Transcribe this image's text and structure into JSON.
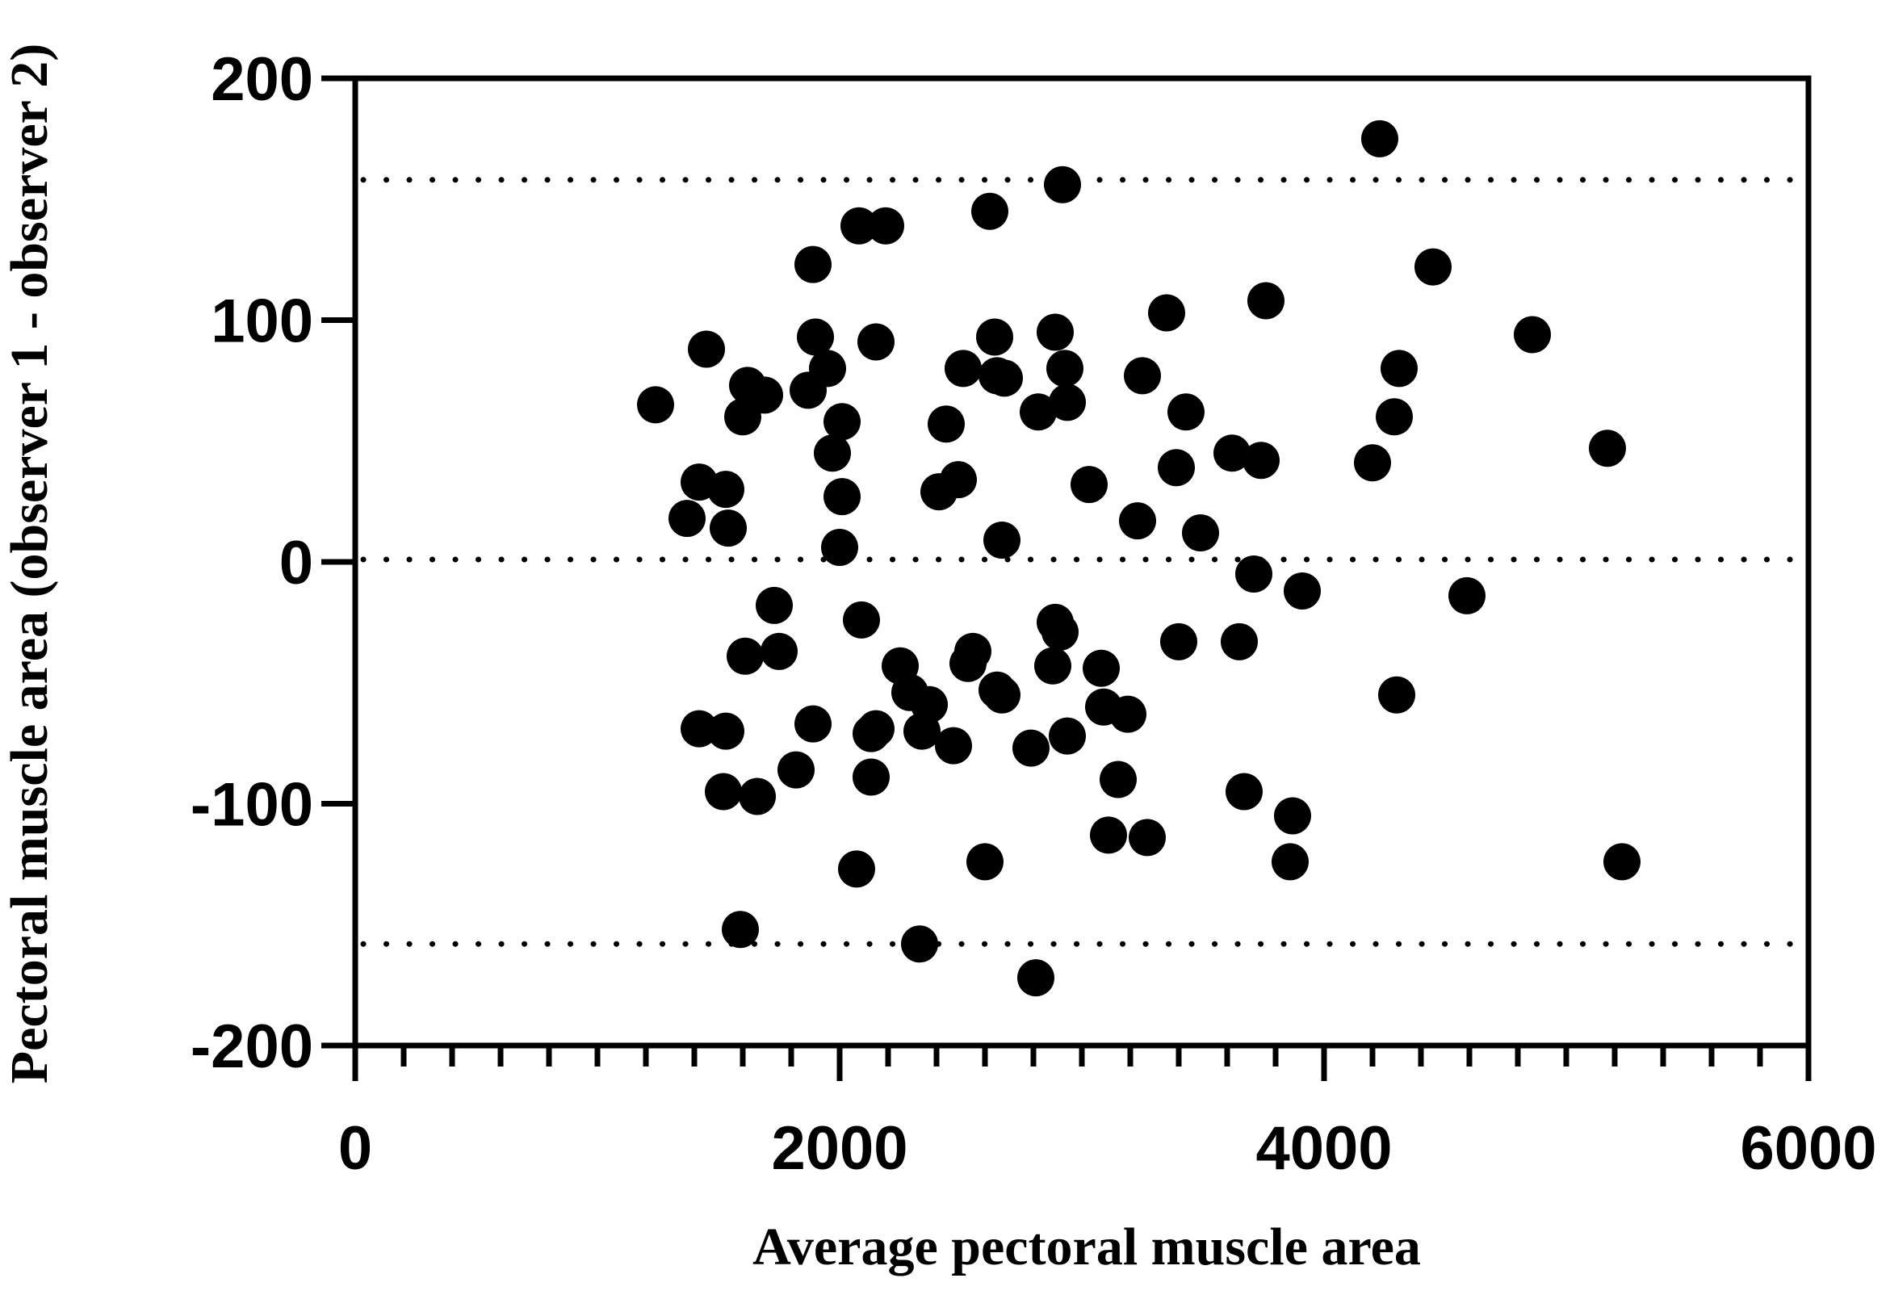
{
  "chart_data": {
    "type": "scatter",
    "title": "",
    "xlabel": "Average pectoral muscle  area",
    "ylabel": "Pectoral muscle area (observer 1 - observer 2)",
    "xlim": [
      0,
      6000
    ],
    "ylim": [
      -200,
      200
    ],
    "x_ticks": [
      0,
      2000,
      4000,
      6000
    ],
    "y_ticks": [
      -200,
      -100,
      0,
      100,
      200
    ],
    "x_tick_labels": [
      "0",
      "2000",
      "4000",
      "6000"
    ],
    "y_tick_labels": [
      "-200",
      "-100",
      "0",
      "100",
      "200"
    ],
    "x_minor_step": 200,
    "reference_lines": [
      158,
      1,
      -158
    ],
    "grid": false,
    "legend": "none",
    "marker_color": "#000000",
    "series": [
      {
        "points": [
          [
            1240,
            65
          ],
          [
            1370,
            18
          ],
          [
            1420,
            33
          ],
          [
            1450,
            88
          ],
          [
            1530,
            30
          ],
          [
            1540,
            14
          ],
          [
            1600,
            60
          ],
          [
            1620,
            73
          ],
          [
            1690,
            69
          ],
          [
            1730,
            -18
          ],
          [
            1750,
            -37
          ],
          [
            1610,
            -39
          ],
          [
            1420,
            -69
          ],
          [
            1530,
            -70
          ],
          [
            1520,
            -95
          ],
          [
            1660,
            -97
          ],
          [
            1820,
            -86
          ],
          [
            1890,
            -67
          ],
          [
            1590,
            -152
          ],
          [
            1870,
            71
          ],
          [
            1890,
            123
          ],
          [
            1900,
            93
          ],
          [
            1950,
            80
          ],
          [
            1970,
            45
          ],
          [
            2010,
            58
          ],
          [
            2010,
            27
          ],
          [
            2000,
            6
          ],
          [
            2090,
            -24
          ],
          [
            2080,
            139
          ],
          [
            2190,
            139
          ],
          [
            2150,
            91
          ],
          [
            2130,
            -71
          ],
          [
            2150,
            -69
          ],
          [
            2130,
            -89
          ],
          [
            2070,
            -127
          ],
          [
            2250,
            -43
          ],
          [
            2290,
            -54
          ],
          [
            2370,
            -59
          ],
          [
            2340,
            -70
          ],
          [
            2330,
            -158
          ],
          [
            2410,
            29
          ],
          [
            2440,
            57
          ],
          [
            2490,
            34
          ],
          [
            2510,
            80
          ],
          [
            2530,
            -42
          ],
          [
            2550,
            -37
          ],
          [
            2470,
            -76
          ],
          [
            2620,
            145
          ],
          [
            2640,
            93
          ],
          [
            2650,
            -53
          ],
          [
            2670,
            -55
          ],
          [
            2650,
            77
          ],
          [
            2680,
            76
          ],
          [
            2670,
            9
          ],
          [
            2790,
            -77
          ],
          [
            2600,
            -124
          ],
          [
            2810,
            -172
          ],
          [
            2820,
            62
          ],
          [
            2890,
            95
          ],
          [
            2890,
            -25
          ],
          [
            2910,
            -29
          ],
          [
            2880,
            -43
          ],
          [
            2920,
            156
          ],
          [
            2930,
            80
          ],
          [
            2940,
            66
          ],
          [
            2940,
            -72
          ],
          [
            3030,
            32
          ],
          [
            3080,
            -44
          ],
          [
            3090,
            -60
          ],
          [
            3110,
            -113
          ],
          [
            3150,
            -90
          ],
          [
            3190,
            -63
          ],
          [
            3230,
            17
          ],
          [
            3250,
            77
          ],
          [
            3270,
            -114
          ],
          [
            3350,
            103
          ],
          [
            3390,
            39
          ],
          [
            3400,
            -33
          ],
          [
            3430,
            62
          ],
          [
            3490,
            12
          ],
          [
            3620,
            45
          ],
          [
            3650,
            -33
          ],
          [
            3670,
            -95
          ],
          [
            3710,
            -5
          ],
          [
            3740,
            42
          ],
          [
            3760,
            108
          ],
          [
            3860,
            -124
          ],
          [
            3870,
            -105
          ],
          [
            3910,
            -12
          ],
          [
            4200,
            41
          ],
          [
            4230,
            175
          ],
          [
            4290,
            60
          ],
          [
            4310,
            80
          ],
          [
            4300,
            -55
          ],
          [
            4450,
            122
          ],
          [
            4590,
            -14
          ],
          [
            4860,
            94
          ],
          [
            5170,
            47
          ],
          [
            5230,
            -124
          ]
        ]
      }
    ]
  }
}
